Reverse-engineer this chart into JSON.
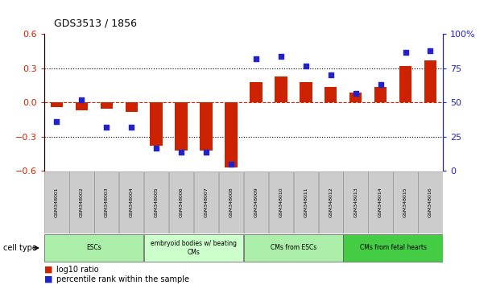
{
  "title": "GDS3513 / 1856",
  "samples": [
    "GSM348001",
    "GSM348002",
    "GSM348003",
    "GSM348004",
    "GSM348005",
    "GSM348006",
    "GSM348007",
    "GSM348008",
    "GSM348009",
    "GSM348010",
    "GSM348011",
    "GSM348012",
    "GSM348013",
    "GSM348014",
    "GSM348015",
    "GSM348016"
  ],
  "log10_ratio": [
    -0.04,
    -0.07,
    -0.05,
    -0.08,
    -0.38,
    -0.42,
    -0.42,
    -0.57,
    0.18,
    0.23,
    0.18,
    0.14,
    0.09,
    0.14,
    0.32,
    0.37
  ],
  "percentile_rank": [
    36,
    52,
    32,
    32,
    17,
    14,
    14,
    5,
    82,
    84,
    77,
    70,
    57,
    63,
    87,
    88
  ],
  "cell_type_groups": [
    {
      "label": "ESCs",
      "start": 0,
      "end": 3,
      "color": "#aaeeaa"
    },
    {
      "label": "embryoid bodies w/ beating\nCMs",
      "start": 4,
      "end": 7,
      "color": "#ccffcc"
    },
    {
      "label": "CMs from ESCs",
      "start": 8,
      "end": 11,
      "color": "#aaeeaa"
    },
    {
      "label": "CMs from fetal hearts",
      "start": 12,
      "end": 15,
      "color": "#44cc44"
    }
  ],
  "bar_color": "#cc2200",
  "dot_color": "#2222cc",
  "ylim_left": [
    -0.6,
    0.6
  ],
  "ylim_right": [
    0,
    100
  ],
  "yticks_left": [
    -0.6,
    -0.3,
    0.0,
    0.3,
    0.6
  ],
  "yticks_right": [
    0,
    25,
    50,
    75,
    100
  ],
  "ytick_labels_right": [
    "0",
    "25",
    "50",
    "75",
    "100%"
  ],
  "hline_color": "#cc2200",
  "dotted_line_color": "#000000",
  "background_color": "#ffffff",
  "plot_bg_color": "#ffffff",
  "legend_items": [
    {
      "label": "log10 ratio",
      "color": "#cc2200"
    },
    {
      "label": "percentile rank within the sample",
      "color": "#2222cc"
    }
  ]
}
